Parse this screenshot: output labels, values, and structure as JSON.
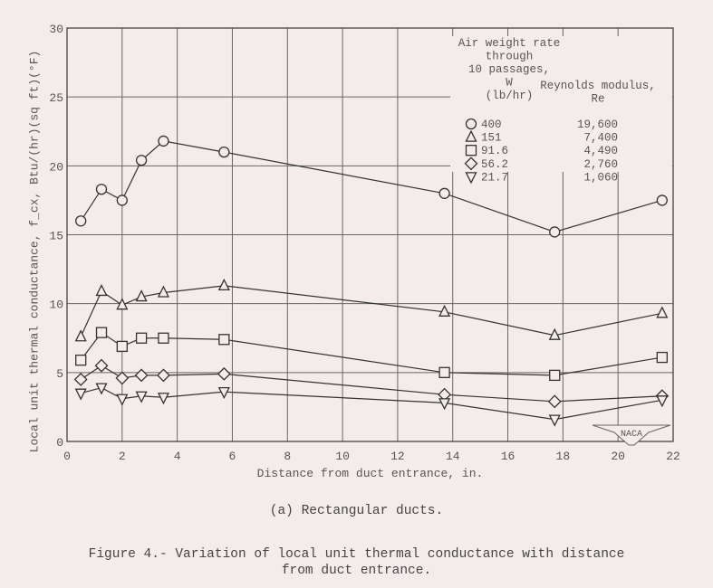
{
  "chart_data": {
    "type": "line",
    "title": "",
    "xlabel": "Distance from duct entrance, in.",
    "ylabel": "Local unit thermal conductance, f_cx, Btu/(hr)(sq ft)(°F)",
    "ylabel_parts": {
      "main": "Local unit thermal conductance, f",
      "sub": "cx",
      "units": ", Btu/(hr)(sq ft)(",
      "deg": "o",
      "end": "F)"
    },
    "xlim": [
      0,
      22
    ],
    "ylim": [
      0,
      30
    ],
    "xticks": [
      0,
      2,
      4,
      6,
      8,
      10,
      12,
      14,
      16,
      18,
      20,
      22
    ],
    "yticks": [
      0,
      5,
      10,
      15,
      20,
      25,
      30
    ],
    "grid": true,
    "x": [
      0.5,
      1.25,
      2.0,
      2.7,
      3.5,
      5.7,
      13.7,
      17.7,
      21.6
    ],
    "series": [
      {
        "name": "400",
        "re": "19,600",
        "marker": "circle",
        "values": [
          16.0,
          18.3,
          17.5,
          20.4,
          21.8,
          21.0,
          18.0,
          15.2,
          17.5
        ]
      },
      {
        "name": "151",
        "re": "7,400",
        "marker": "triangle-up",
        "values": [
          7.6,
          10.9,
          9.9,
          10.5,
          10.8,
          11.3,
          9.4,
          7.7,
          9.3
        ]
      },
      {
        "name": "91.6",
        "re": "4,490",
        "marker": "square",
        "values": [
          5.9,
          7.9,
          6.9,
          7.5,
          7.5,
          7.4,
          5.0,
          4.8,
          6.1
        ]
      },
      {
        "name": "56.2",
        "re": "2,760",
        "marker": "diamond",
        "values": [
          4.5,
          5.5,
          4.6,
          4.8,
          4.8,
          4.9,
          3.4,
          2.9,
          3.3
        ]
      },
      {
        "name": "21.7",
        "re": "1,060",
        "marker": "triangle-down",
        "values": [
          3.5,
          3.9,
          3.1,
          3.3,
          3.2,
          3.6,
          2.8,
          1.6,
          3.0
        ]
      }
    ],
    "legend": {
      "placement": "top-right",
      "w_header": [
        "Air weight rate",
        "through",
        "10 passages,",
        "W",
        "(lb/hr)"
      ],
      "re_header": [
        "Reynolds modulus,",
        "Re"
      ]
    },
    "logo": "NACA"
  },
  "caption": {
    "sub": "(a)  Rectangular ducts.",
    "figure": [
      "Figure 4.- Variation of local unit thermal conductance with distance",
      "from duct entrance."
    ]
  },
  "colors": {
    "ink": "#333333",
    "grid": "#555555",
    "paper": "#f4ecea"
  }
}
